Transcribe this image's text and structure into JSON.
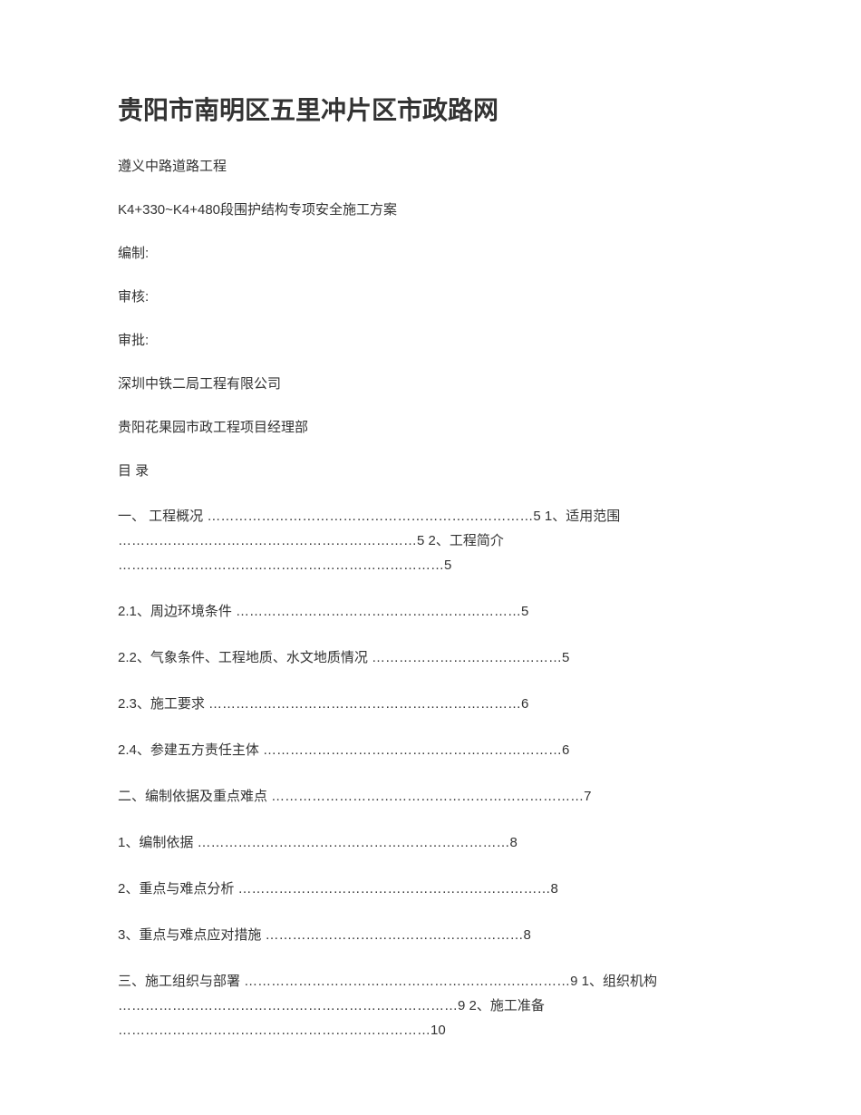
{
  "title": "贵阳市南明区五里冲片区市政路网",
  "subtitle1": "遵义中路道路工程",
  "subtitle2": "K4+330~K4+480段围护结构专项安全施工方案",
  "compiled": "编制:",
  "reviewed": "审核:",
  "approved": "审批:",
  "company1": "深圳中铁二局工程有限公司",
  "company2": "贵阳花果园市政工程项目经理部",
  "toc_header": "目 录",
  "toc": {
    "line1": "一、 工程概况 ………………………………………………………………5 1、适用范围 …………………………………………………………5 2、工程简介 ………………………………………………………………5",
    "line2": "2.1、周边环境条件 ………………………………………………………5",
    "line3": "2.2、气象条件、工程地质、水文地质情况 ……………………………………5",
    "line4": "2.3、施工要求 ……………………………………………………………6",
    "line5": "2.4、参建五方责任主体 …………………………………………………………6",
    "line6": "二、编制依据及重点难点 ……………………………………………………………7",
    "line7": "1、编制依据 ……………………………………………………………8",
    "line8": "2、重点与难点分析 ……………………………………………………………8",
    "line9": "3、重点与难点应对措施 …………………………………………………8",
    "line10": "三、施工组织与部署 ………………………………………………………………9 1、组织机构 …………………………………………………………………9 2、施工准备 ……………………………………………………………10"
  }
}
